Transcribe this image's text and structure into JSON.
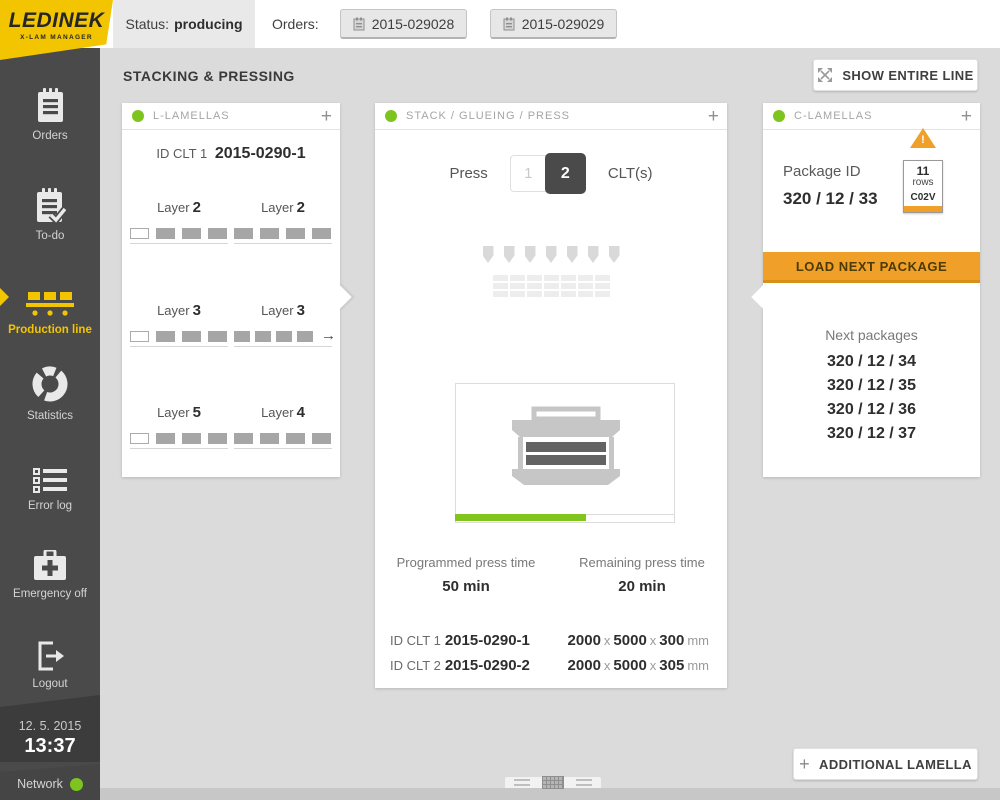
{
  "ui": {
    "plus": "+",
    "accent_green": "#7EC41F",
    "accent_orange": "#F0A028",
    "accent_yellow": "#F2C500"
  },
  "app": {
    "logo_title": "LEDINEK",
    "logo_subtitle": "X-LAM MANAGER"
  },
  "topbar": {
    "status_label": "Status:",
    "status_value": "producing",
    "orders_label": "Orders:",
    "orders": [
      "2015-029028",
      "2015-029029"
    ]
  },
  "sidebar": {
    "items": [
      {
        "label": "Orders"
      },
      {
        "label": "To-do"
      },
      {
        "label": "Production line",
        "active": true
      },
      {
        "label": "Statistics"
      },
      {
        "label": "Error log"
      },
      {
        "label": "Emergency off"
      },
      {
        "label": "Logout"
      }
    ],
    "date": "12. 5. 2015",
    "time": "13:37",
    "network_label": "Network"
  },
  "main": {
    "title": "STACKING & PRESSING",
    "show_entire_line": "SHOW ENTIRE LINE",
    "additional_lamella": "ADDITIONAL LAMELLA"
  },
  "l_lamellas": {
    "title": "L-LAMELLAS",
    "id_label": "ID CLT 1",
    "id_value": "2015-0290-1",
    "arrow_glyph": "→",
    "rows": [
      {
        "left": {
          "label": "Layer",
          "num": "2",
          "blocks": [
            "empty",
            "filled",
            "filled",
            "filled"
          ]
        },
        "right": {
          "label": "Layer",
          "num": "2",
          "blocks": [
            "filled",
            "filled",
            "filled",
            "filled"
          ]
        }
      },
      {
        "left": {
          "label": "Layer",
          "num": "3",
          "blocks": [
            "empty",
            "filled",
            "filled",
            "filled"
          ]
        },
        "right": {
          "label": "Layer",
          "num": "3",
          "blocks": [
            "filled",
            "filled",
            "filled",
            "filled"
          ],
          "arrow": true
        }
      },
      {
        "left": {
          "label": "Layer",
          "num": "5",
          "blocks": [
            "empty",
            "filled",
            "filled",
            "filled"
          ]
        },
        "right": {
          "label": "Layer",
          "num": "4",
          "blocks": [
            "filled",
            "filled",
            "filled",
            "filled"
          ]
        }
      }
    ]
  },
  "press_panel": {
    "title": "STACK / GLUEING / PRESS",
    "press_label": "Press",
    "press_options": [
      "1",
      "2"
    ],
    "press_selected": "2",
    "clt_label": "CLT(s)",
    "progress_percent": 60,
    "programmed_label": "Programmed press time",
    "programmed_value": "50 min",
    "remaining_label": "Remaining press time",
    "remaining_value": "20 min",
    "dim_sep": "x",
    "unit": "mm",
    "clts": [
      {
        "id_label": "ID CLT 1",
        "id": "2015-0290-1",
        "dims": [
          "2000",
          "5000",
          "300"
        ]
      },
      {
        "id_label": "ID CLT 2",
        "id": "2015-0290-2",
        "dims": [
          "2000",
          "5000",
          "305"
        ]
      }
    ]
  },
  "c_lamellas": {
    "title": "C-LAMELLAS",
    "package_id_label": "Package ID",
    "package_id": "320 / 12 / 33",
    "warning_glyph": "!",
    "tag_rows": "11",
    "tag_rows_label": "rows",
    "tag_code": "C02V",
    "load_button": "LOAD NEXT PACKAGE",
    "next_label": "Next packages",
    "next_packages": [
      "320 / 12 / 34",
      "320 / 12 / 35",
      "320 / 12 / 36",
      "320 / 12 / 37"
    ]
  }
}
